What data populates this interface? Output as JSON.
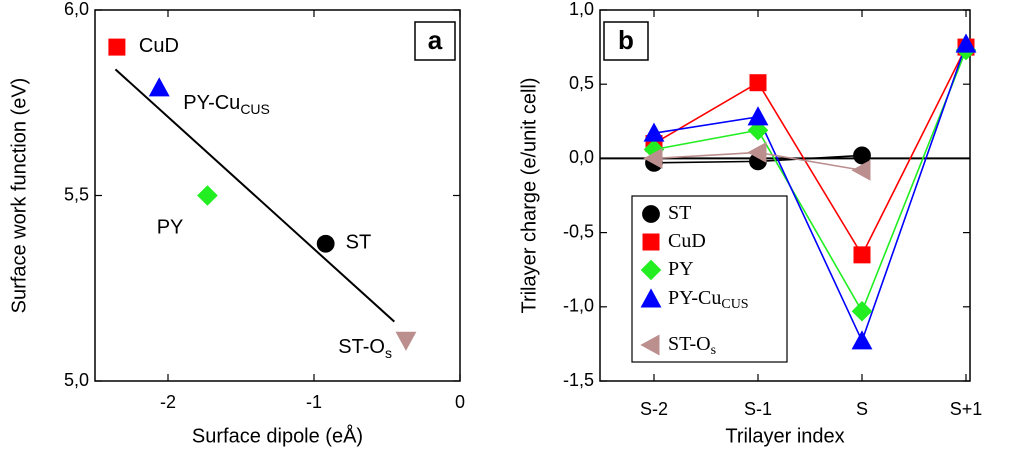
{
  "chart_data": [
    {
      "type": "scatter",
      "panel_label": "a",
      "xlabel": "Surface dipole (eÅ)",
      "ylabel": "Surface work function (eV)",
      "xlim": [
        -2.5,
        0
      ],
      "ylim": [
        5.0,
        6.0
      ],
      "xticks": [
        -2,
        -1,
        0
      ],
      "yticks": [
        {
          "value": 5.0,
          "label": "5,0"
        },
        {
          "value": 5.5,
          "label": "5,5"
        },
        {
          "value": 6.0,
          "label": "6,0"
        }
      ],
      "series": [
        {
          "name": "CuD",
          "color": "#ff0000",
          "marker": "square",
          "x": [
            -2.35
          ],
          "y": [
            5.9
          ]
        },
        {
          "name": "PY-Cu",
          "subscript": "CUS",
          "color": "#0000ff",
          "marker": "triangle-up",
          "x": [
            -2.06
          ],
          "y": [
            5.79
          ]
        },
        {
          "name": "PY",
          "color": "#22ee22",
          "marker": "diamond",
          "x": [
            -1.73
          ],
          "y": [
            5.5
          ]
        },
        {
          "name": "ST",
          "color": "#000000",
          "marker": "circle",
          "x": [
            -0.92
          ],
          "y": [
            5.37
          ]
        },
        {
          "name": "ST-O",
          "subscript": "s",
          "color": "#bc8f8f",
          "marker": "triangle-down",
          "x": [
            -0.37
          ],
          "y": [
            5.11
          ]
        }
      ],
      "fit": {
        "color": "#000000",
        "x": [
          -2.36,
          -0.45
        ],
        "y": [
          5.84,
          5.16
        ]
      }
    },
    {
      "type": "line",
      "panel_label": "b",
      "xlabel": "Trilayer index",
      "ylabel": "Trilayer charge (e/unit cell)",
      "categories": [
        "S-2",
        "S-1",
        "S",
        "S+1"
      ],
      "ylim": [
        -1.5,
        1.0
      ],
      "yticks": [
        {
          "value": -1.5,
          "label": "-1,5"
        },
        {
          "value": -1.0,
          "label": "-1,0"
        },
        {
          "value": -0.5,
          "label": "-0,5"
        },
        {
          "value": 0.0,
          "label": "0,0"
        },
        {
          "value": 0.5,
          "label": "0,5"
        },
        {
          "value": 1.0,
          "label": "1,0"
        }
      ],
      "zero_line": true,
      "series": [
        {
          "name": "ST",
          "color": "#000000",
          "marker": "circle",
          "values": [
            -0.03,
            -0.02,
            0.02,
            null
          ]
        },
        {
          "name": "CuD",
          "color": "#ff0000",
          "marker": "square",
          "values": [
            0.1,
            0.51,
            -0.65,
            0.75
          ]
        },
        {
          "name": "PY",
          "color": "#22ee22",
          "marker": "diamond",
          "values": [
            0.06,
            0.19,
            -1.03,
            0.73
          ]
        },
        {
          "name": "PY-Cu",
          "subscript": "CUS",
          "color": "#0000ff",
          "marker": "triangle-up",
          "values": [
            0.17,
            0.28,
            -1.23,
            0.77
          ]
        },
        {
          "name": "ST-O",
          "subscript": "s",
          "color": "#bc8f8f",
          "marker": "triangle-left",
          "values": [
            0.0,
            0.04,
            -0.08,
            null
          ]
        }
      ]
    }
  ]
}
